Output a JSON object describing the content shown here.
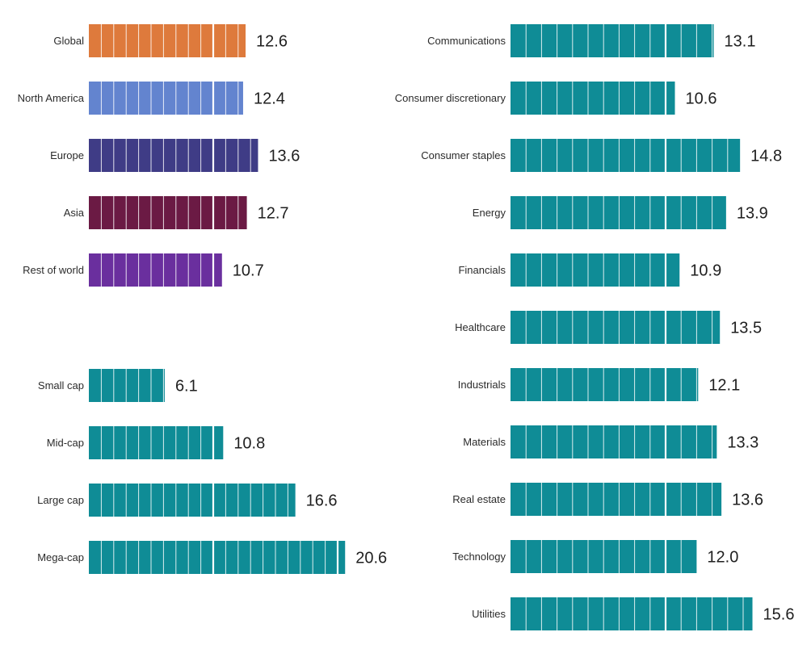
{
  "chart_data": [
    {
      "type": "bar",
      "orientation": "horizontal",
      "title": "",
      "categories": [
        "Global",
        "North America",
        "Europe",
        "Asia",
        "Rest of world"
      ],
      "values": [
        12.6,
        12.4,
        13.6,
        12.7,
        10.7
      ],
      "colors": [
        "#de7a3c",
        "#6384cf",
        "#3f3c86",
        "#6b1a44",
        "#6a2f9e"
      ],
      "segment_unit": 1,
      "major_divider_every": 10
    },
    {
      "type": "bar",
      "orientation": "horizontal",
      "title": "",
      "categories": [
        "Small cap",
        "Mid-cap",
        "Large cap",
        "Mega-cap"
      ],
      "values": [
        6.1,
        10.8,
        16.6,
        20.6
      ],
      "colors": [
        "#0f8c96",
        "#0f8c96",
        "#0f8c96",
        "#0f8c96"
      ],
      "segment_unit": 1,
      "major_divider_every": 10
    },
    {
      "type": "bar",
      "orientation": "horizontal",
      "title": "",
      "categories": [
        "Communications",
        "Consumer discretionary",
        "Consumer staples",
        "Energy",
        "Financials",
        "Healthcare",
        "Industrials",
        "Materials",
        "Real estate",
        "Technology",
        "Utilities"
      ],
      "values": [
        13.1,
        10.6,
        14.8,
        13.9,
        10.9,
        13.5,
        12.1,
        13.3,
        13.6,
        12.0,
        15.6
      ],
      "colors": [
        "#0f8c96",
        "#0f8c96",
        "#0f8c96",
        "#0f8c96",
        "#0f8c96",
        "#0f8c96",
        "#0f8c96",
        "#0f8c96",
        "#0f8c96",
        "#0f8c96",
        "#0f8c96"
      ],
      "segment_unit": 1,
      "major_divider_every": 10
    }
  ]
}
